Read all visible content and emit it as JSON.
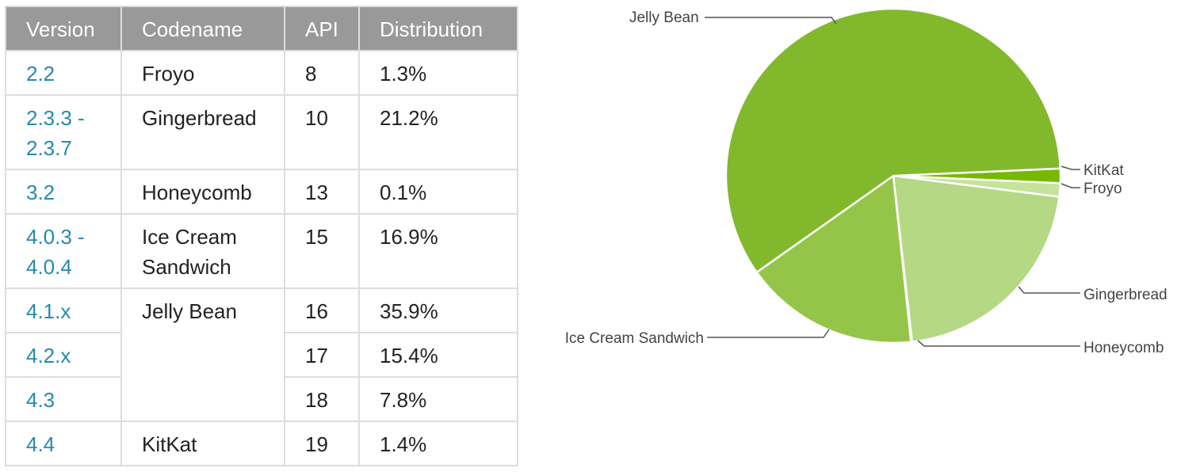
{
  "table": {
    "headers": [
      "Version",
      "Codename",
      "API",
      "Distribution"
    ],
    "rows": [
      {
        "version": "2.2",
        "codename": "Froyo",
        "api": "8",
        "distribution": "1.3%"
      },
      {
        "version": "2.3.3 - 2.3.7",
        "codename": "Gingerbread",
        "api": "10",
        "distribution": "21.2%"
      },
      {
        "version": "3.2",
        "codename": "Honeycomb",
        "api": "13",
        "distribution": "0.1%"
      },
      {
        "version": "4.0.3 - 4.0.4",
        "codename": "Ice Cream Sandwich",
        "api": "15",
        "distribution": "16.9%"
      },
      {
        "version": "4.1.x",
        "codename": "Jelly Bean",
        "api": "16",
        "distribution": "35.9%"
      },
      {
        "version": "4.2.x",
        "codename": "",
        "api": "17",
        "distribution": "15.4%"
      },
      {
        "version": "4.3",
        "codename": "",
        "api": "18",
        "distribution": "7.8%"
      },
      {
        "version": "4.4",
        "codename": "KitKat",
        "api": "19",
        "distribution": "1.4%"
      }
    ]
  },
  "chart_data": {
    "type": "pie",
    "start_angle_deg": -2.5,
    "slices": [
      {
        "label": "KitKat",
        "value": 1.4,
        "color": "#77b800"
      },
      {
        "label": "Froyo",
        "value": 1.3,
        "color": "#c5e39a"
      },
      {
        "label": "Gingerbread",
        "value": 21.2,
        "color": "#b5d884"
      },
      {
        "label": "Honeycomb",
        "value": 0.1,
        "color": "#aed272"
      },
      {
        "label": "Ice Cream Sandwich",
        "value": 16.9,
        "color": "#95c548"
      },
      {
        "label": "Jelly Bean",
        "value": 59.1,
        "color": "#82b92c"
      }
    ]
  }
}
